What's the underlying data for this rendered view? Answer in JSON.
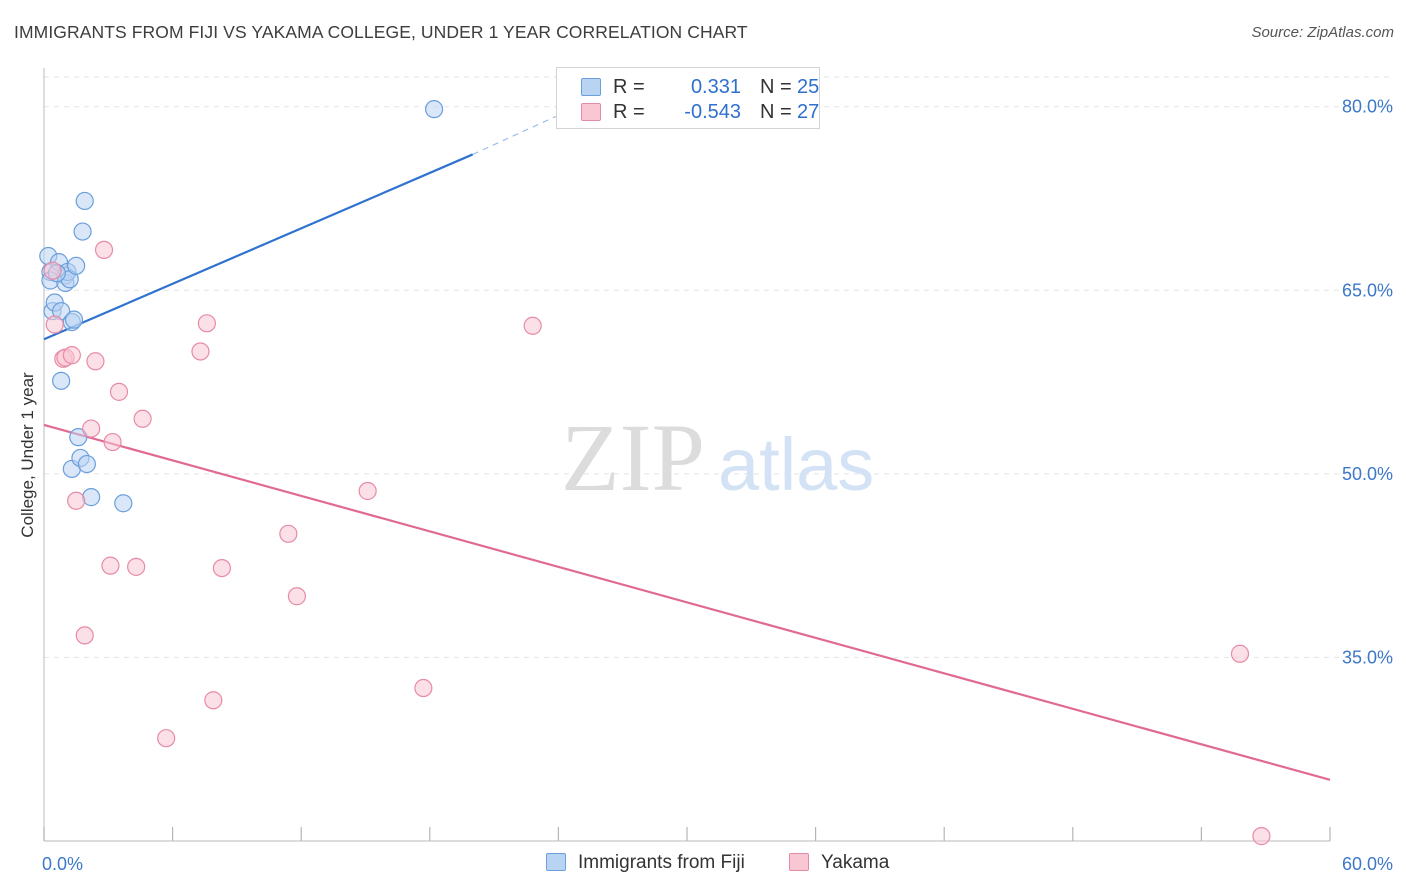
{
  "title": "IMMIGRANTS FROM FIJI VS YAKAMA COLLEGE, UNDER 1 YEAR CORRELATION CHART",
  "source": "Source: ZipAtlas.com",
  "watermark": {
    "zip": "ZIP",
    "atlas": "atlas"
  },
  "legend": {
    "series1": {
      "r_label": "R =",
      "r_value": "0.331",
      "n_label": "N =",
      "n_value": "25"
    },
    "series2": {
      "r_label": "R =",
      "r_value": "-0.543",
      "n_label": "N =",
      "n_value": "27"
    }
  },
  "bottom_legend": {
    "series1": "Immigrants from Fiji",
    "series2": "Yakama"
  },
  "colors": {
    "blue_fill": "#b9d3f3",
    "blue_stroke": "#6b9fdc",
    "blue_line": "#2f72cf",
    "pink_fill": "#f9c6d4",
    "pink_stroke": "#e68ba6",
    "pink_line": "#e06a94",
    "tick_label": "#3d78c9",
    "grid": "#e3e3e3"
  },
  "chart_data": {
    "type": "scatter",
    "title": "IMMIGRANTS FROM FIJI VS YAKAMA COLLEGE, UNDER 1 YEAR CORRELATION CHART",
    "xlabel": "",
    "ylabel": "College, Under 1 year",
    "xlim": [
      0,
      60
    ],
    "ylim": [
      20,
      83
    ],
    "x_tick_labels": [
      "0.0%",
      "60.0%"
    ],
    "y_ticks": [
      35,
      50,
      65,
      80
    ],
    "y_tick_labels": [
      "35.0%",
      "50.0%",
      "65.0%",
      "80.0%"
    ],
    "grid": true,
    "series": [
      {
        "name": "Immigrants from Fiji",
        "color": "blue",
        "r": 0.331,
        "n": 25,
        "points": [
          [
            0.2,
            67.8
          ],
          [
            0.3,
            66.5
          ],
          [
            0.3,
            65.8
          ],
          [
            0.4,
            63.3
          ],
          [
            0.5,
            64.0
          ],
          [
            0.7,
            67.3
          ],
          [
            0.8,
            63.3
          ],
          [
            0.8,
            57.6
          ],
          [
            1.0,
            66.2
          ],
          [
            1.0,
            65.6
          ],
          [
            1.1,
            66.5
          ],
          [
            1.2,
            65.9
          ],
          [
            1.3,
            62.4
          ],
          [
            1.3,
            50.4
          ],
          [
            1.4,
            62.6
          ],
          [
            1.5,
            67.0
          ],
          [
            1.6,
            53.0
          ],
          [
            1.7,
            51.3
          ],
          [
            1.8,
            69.8
          ],
          [
            1.9,
            72.3
          ],
          [
            2.0,
            50.8
          ],
          [
            2.2,
            48.1
          ],
          [
            3.7,
            47.6
          ],
          [
            18.2,
            79.8
          ],
          [
            0.6,
            66.4
          ]
        ],
        "trend": {
          "x0": 0,
          "y0": 61.0,
          "x1": 20,
          "y1": 76.1,
          "dashed_to_x": 24,
          "dashed_to_y": 79.3
        }
      },
      {
        "name": "Yakama",
        "color": "pink",
        "r": -0.543,
        "n": 27,
        "points": [
          [
            0.4,
            66.6
          ],
          [
            0.5,
            62.2
          ],
          [
            0.9,
            59.4
          ],
          [
            1.0,
            59.5
          ],
          [
            1.3,
            59.7
          ],
          [
            1.5,
            47.8
          ],
          [
            1.9,
            36.8
          ],
          [
            2.2,
            53.7
          ],
          [
            2.4,
            59.2
          ],
          [
            2.8,
            68.3
          ],
          [
            3.1,
            42.5
          ],
          [
            3.2,
            52.6
          ],
          [
            3.5,
            56.7
          ],
          [
            4.3,
            42.4
          ],
          [
            4.6,
            54.5
          ],
          [
            5.7,
            28.4
          ],
          [
            7.3,
            60.0
          ],
          [
            7.6,
            62.3
          ],
          [
            7.9,
            31.5
          ],
          [
            8.3,
            42.3
          ],
          [
            11.4,
            45.1
          ],
          [
            11.8,
            40.0
          ],
          [
            15.1,
            48.6
          ],
          [
            17.7,
            32.5
          ],
          [
            22.8,
            62.1
          ],
          [
            55.8,
            35.3
          ],
          [
            56.8,
            20.4
          ]
        ],
        "trend": {
          "x0": 0,
          "y0": 54.0,
          "x1": 60,
          "y1": 25.0
        }
      }
    ]
  }
}
